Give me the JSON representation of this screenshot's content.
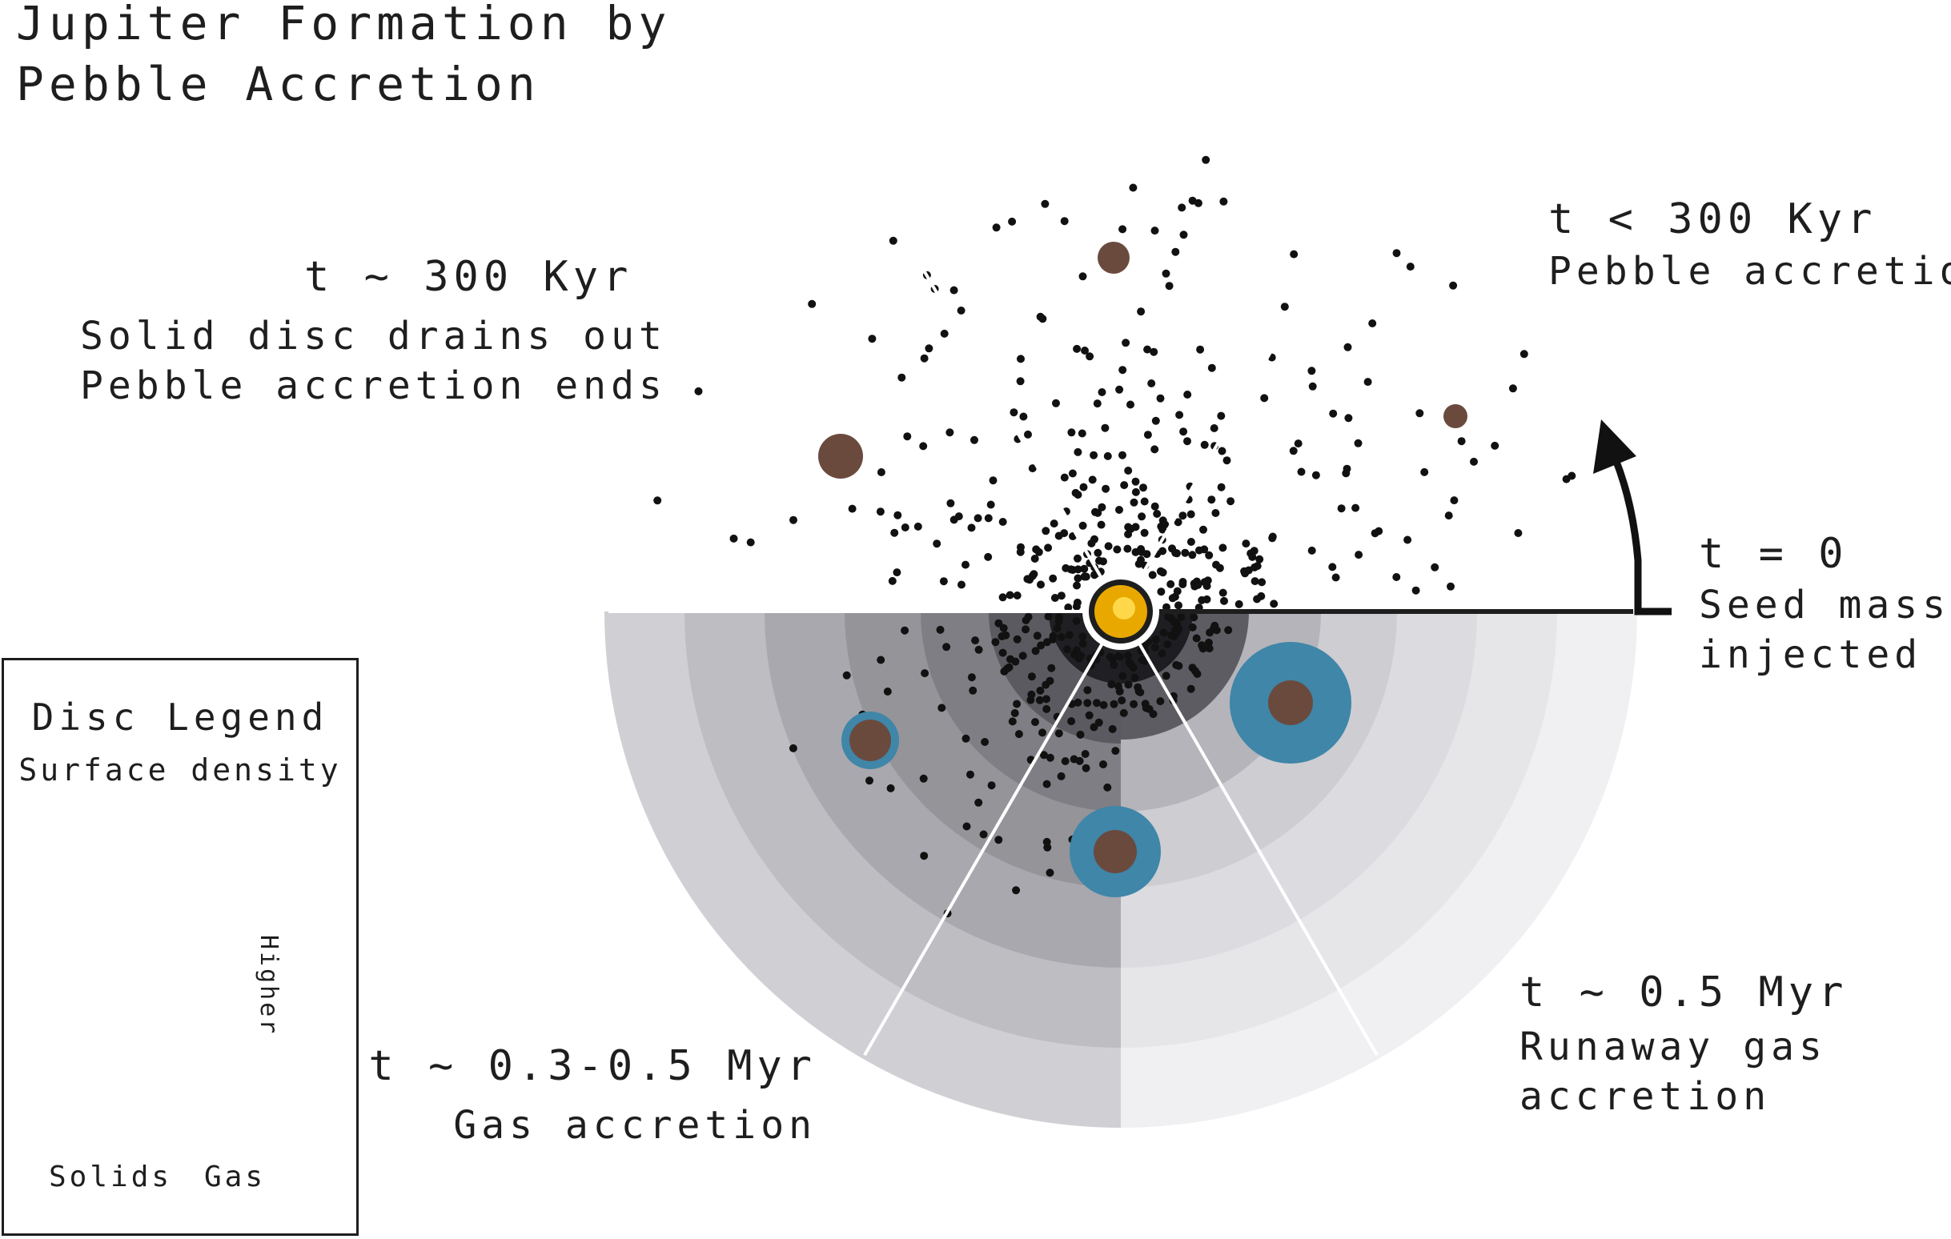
{
  "title": [
    "Jupiter Formation by",
    "Pebble Accretion"
  ],
  "stages": {
    "t0": {
      "time": "t = 0",
      "lines": [
        "Seed mass",
        "injected"
      ]
    },
    "t300_lt": {
      "time": "t < 300 Kyr",
      "lines": [
        "Pebble accretion"
      ]
    },
    "t300": {
      "time": "t ~ 300 Kyr",
      "lines": [
        "Solid disc drains out",
        "Pebble accretion ends"
      ]
    },
    "t03": {
      "time": "t ~ 0.3-0.5 Myr",
      "lines": [
        "Gas accretion"
      ]
    },
    "t05": {
      "time": "t ~ 0.5 Myr",
      "lines": [
        "Runaway gas",
        "accretion"
      ]
    }
  },
  "legend": {
    "title": "Disc Legend",
    "subtitle": "Surface density",
    "solids_label": "Solids",
    "gas_label": "Gas",
    "arrow_label": "Higher"
  },
  "colors": {
    "star_core": "#e8a800",
    "planet_core": "#6b4a3e",
    "gas_envelope": "#3f86a8",
    "text": "#1e1e1e"
  }
}
